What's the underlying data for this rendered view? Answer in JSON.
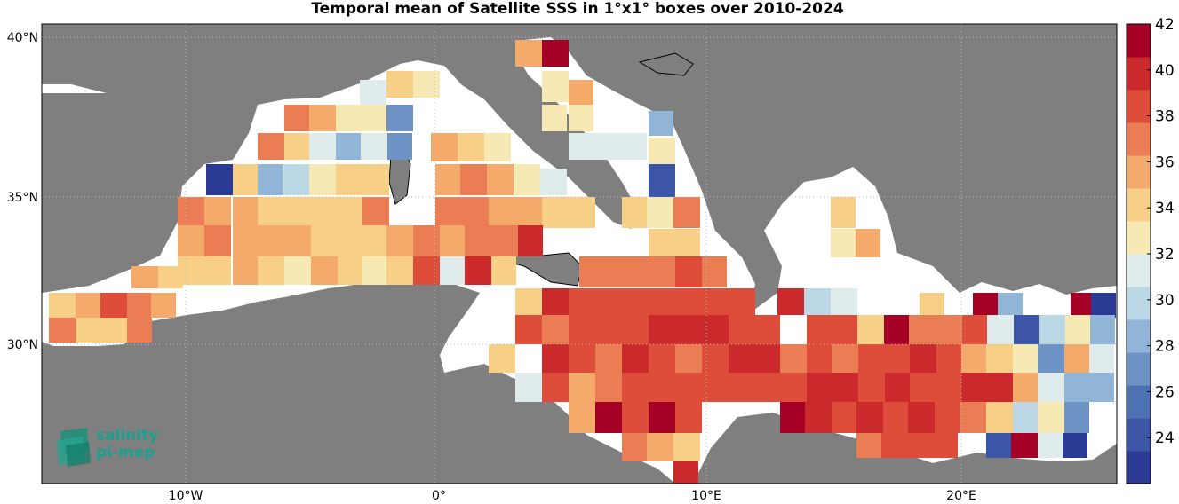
{
  "title": "Temporal mean of Satellite SSS in 1°x1° boxes over 2010-2024",
  "colors": {
    "land": "#7f7f7f",
    "sea_nodata": "#ffffff",
    "colormap": [
      "#2b3a94",
      "#3c55a6",
      "#4d72b3",
      "#6d93c4",
      "#91b5d6",
      "#bcd8e6",
      "#e0ecec",
      "#f6e9b3",
      "#f8cf87",
      "#f3aa6b",
      "#ea7d53",
      "#de4d3a",
      "#cb2a2c",
      "#a50026"
    ]
  },
  "axes": {
    "y_ticks": [
      {
        "label": "40°N"
      },
      {
        "label": "35°N"
      },
      {
        "label": "30°N"
      }
    ],
    "x_ticks": [
      {
        "label": "10°W"
      },
      {
        "label": "0°"
      },
      {
        "label": "10°E"
      },
      {
        "label": "20°E"
      }
    ]
  },
  "colorbar": {
    "min": 22,
    "max": 42,
    "ticks": [
      "24",
      "26",
      "28",
      "30",
      "32",
      "34",
      "36",
      "38",
      "40",
      "42"
    ]
  },
  "logo": {
    "line1": "salinity",
    "line2": "pi-mep",
    "icon": "salinity-logo-icon"
  }
}
